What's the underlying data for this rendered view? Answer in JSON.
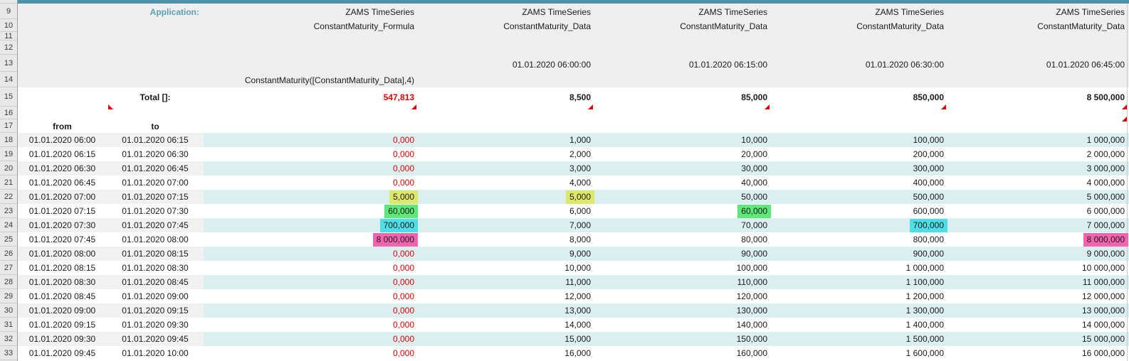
{
  "sheet": {
    "application_label": "Application:",
    "row_numbers": [
      "9",
      "10",
      "11",
      "12",
      "13",
      "14",
      "15",
      "16",
      "17",
      "18",
      "19",
      "20",
      "21",
      "22",
      "23",
      "24",
      "25",
      "26",
      "27",
      "28",
      "29",
      "30",
      "31",
      "32",
      "33"
    ],
    "columns": [
      {
        "line1": "ZAMS TimeSeries",
        "line2": "ConstantMaturity_Formula",
        "timestamp": "",
        "formula_caption": "ConstantMaturity([ConstantMaturity_Data],4)"
      },
      {
        "line1": "ZAMS TimeSeries",
        "line2": "ConstantMaturity_Data",
        "timestamp": "01.01.2020 06:00:00",
        "formula_caption": ""
      },
      {
        "line1": "ZAMS TimeSeries",
        "line2": "ConstantMaturity_Data",
        "timestamp": "01.01.2020 06:15:00",
        "formula_caption": ""
      },
      {
        "line1": "ZAMS TimeSeries",
        "line2": "ConstantMaturity_Data",
        "timestamp": "01.01.2020 06:30:00",
        "formula_caption": ""
      },
      {
        "line1": "ZAMS TimeSeries",
        "line2": "ConstantMaturity_Data",
        "timestamp": "01.01.2020 06:45:00",
        "formula_caption": ""
      }
    ],
    "totals": {
      "label": "Total []:",
      "values": [
        "547,813",
        "8,500",
        "85,000",
        "850,000",
        "8 500,000"
      ],
      "value_colors": [
        "#e00000",
        "#1a1a1a",
        "#1a1a1a",
        "#1a1a1a",
        "#1a1a1a"
      ]
    },
    "table": {
      "from_header": "from",
      "to_header": "to",
      "rows": [
        {
          "row": "18",
          "from": "01.01.2020 06:00",
          "to": "01.01.2020 06:15",
          "values": [
            "0,000",
            "1,000",
            "10,000",
            "100,000",
            "1 000,000"
          ],
          "highlights": [
            null,
            null,
            null,
            null,
            null
          ]
        },
        {
          "row": "19",
          "from": "01.01.2020 06:15",
          "to": "01.01.2020 06:30",
          "values": [
            "0,000",
            "2,000",
            "20,000",
            "200,000",
            "2 000,000"
          ],
          "highlights": [
            null,
            null,
            null,
            null,
            null
          ]
        },
        {
          "row": "20",
          "from": "01.01.2020 06:30",
          "to": "01.01.2020 06:45",
          "values": [
            "0,000",
            "3,000",
            "30,000",
            "300,000",
            "3 000,000"
          ],
          "highlights": [
            null,
            null,
            null,
            null,
            null
          ]
        },
        {
          "row": "21",
          "from": "01.01.2020 06:45",
          "to": "01.01.2020 07:00",
          "values": [
            "0,000",
            "4,000",
            "40,000",
            "400,000",
            "4 000,000"
          ],
          "highlights": [
            null,
            null,
            null,
            null,
            null
          ]
        },
        {
          "row": "22",
          "from": "01.01.2020 07:00",
          "to": "01.01.2020 07:15",
          "values": [
            "5,000",
            "5,000",
            "50,000",
            "500,000",
            "5 000,000"
          ],
          "highlights": [
            "yellow",
            "yellow",
            null,
            null,
            null
          ]
        },
        {
          "row": "23",
          "from": "01.01.2020 07:15",
          "to": "01.01.2020 07:30",
          "values": [
            "60,000",
            "6,000",
            "60,000",
            "600,000",
            "6 000,000"
          ],
          "highlights": [
            "green",
            null,
            "green",
            null,
            null
          ]
        },
        {
          "row": "24",
          "from": "01.01.2020 07:30",
          "to": "01.01.2020 07:45",
          "values": [
            "700,000",
            "7,000",
            "70,000",
            "700,000",
            "7 000,000"
          ],
          "highlights": [
            "cyan",
            null,
            null,
            "cyan",
            null
          ]
        },
        {
          "row": "25",
          "from": "01.01.2020 07:45",
          "to": "01.01.2020 08:00",
          "values": [
            "8 000,000",
            "8,000",
            "80,000",
            "800,000",
            "8 000,000"
          ],
          "highlights": [
            "pink",
            null,
            null,
            null,
            "pink"
          ]
        },
        {
          "row": "26",
          "from": "01.01.2020 08:00",
          "to": "01.01.2020 08:15",
          "values": [
            "0,000",
            "9,000",
            "90,000",
            "900,000",
            "9 000,000"
          ],
          "highlights": [
            null,
            null,
            null,
            null,
            null
          ]
        },
        {
          "row": "27",
          "from": "01.01.2020 08:15",
          "to": "01.01.2020 08:30",
          "values": [
            "0,000",
            "10,000",
            "100,000",
            "1 000,000",
            "10 000,000"
          ],
          "highlights": [
            null,
            null,
            null,
            null,
            null
          ]
        },
        {
          "row": "28",
          "from": "01.01.2020 08:30",
          "to": "01.01.2020 08:45",
          "values": [
            "0,000",
            "11,000",
            "110,000",
            "1 100,000",
            "11 000,000"
          ],
          "highlights": [
            null,
            null,
            null,
            null,
            null
          ]
        },
        {
          "row": "29",
          "from": "01.01.2020 08:45",
          "to": "01.01.2020 09:00",
          "values": [
            "0,000",
            "12,000",
            "120,000",
            "1 200,000",
            "12 000,000"
          ],
          "highlights": [
            null,
            null,
            null,
            null,
            null
          ]
        },
        {
          "row": "30",
          "from": "01.01.2020 09:00",
          "to": "01.01.2020 09:15",
          "values": [
            "0,000",
            "13,000",
            "130,000",
            "1 300,000",
            "13 000,000"
          ],
          "highlights": [
            null,
            null,
            null,
            null,
            null
          ]
        },
        {
          "row": "31",
          "from": "01.01.2020 09:15",
          "to": "01.01.2020 09:30",
          "values": [
            "0,000",
            "14,000",
            "140,000",
            "1 400,000",
            "14 000,000"
          ],
          "highlights": [
            null,
            null,
            null,
            null,
            null
          ]
        },
        {
          "row": "32",
          "from": "01.01.2020 09:30",
          "to": "01.01.2020 09:45",
          "values": [
            "0,000",
            "15,000",
            "150,000",
            "1 500,000",
            "15 000,000"
          ],
          "highlights": [
            null,
            null,
            null,
            null,
            null
          ]
        },
        {
          "row": "33",
          "from": "01.01.2020 09:45",
          "to": "01.01.2020 10:00",
          "values": [
            "0,000",
            "16,000",
            "160,000",
            "1 600,000",
            "16 000,000"
          ],
          "highlights": [
            null,
            null,
            null,
            null,
            null
          ]
        }
      ]
    },
    "colors": {
      "accent_bar": "#4d93a8",
      "application_label": "#58a0b5",
      "zero_value": "#e00000",
      "flag": "#dd0000",
      "row_stripe_cyan": "#dbeff0",
      "row_stripe_gray": "#f1f1f1",
      "highlight_yellow": "#dce968",
      "highlight_green": "#5de877",
      "highlight_cyan": "#4edee8",
      "highlight_pink": "#f364af"
    },
    "zero_value_text": "0,000"
  }
}
